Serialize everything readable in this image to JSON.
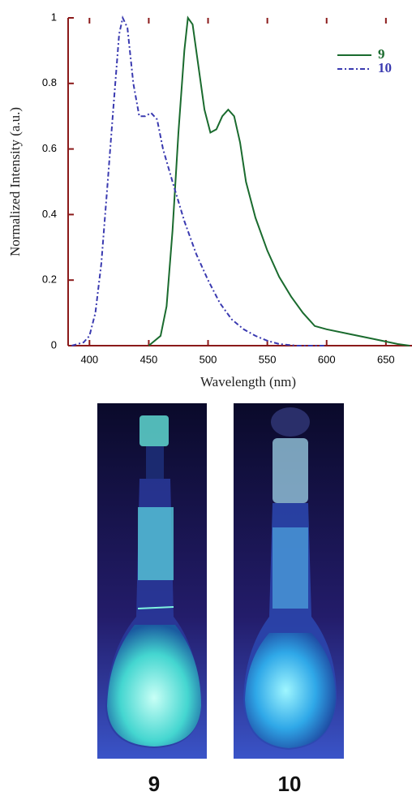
{
  "chart_data": {
    "type": "line",
    "xlabel": "Wavelength (nm)",
    "ylabel": "Normalized Intensity (a.u.)",
    "xlim": [
      382,
      672
    ],
    "xticks": [
      400,
      450,
      500,
      550,
      600,
      650
    ],
    "ylim": [
      0,
      1
    ],
    "yticks": [
      0,
      0.2,
      0.4,
      0.6,
      0.8,
      1
    ],
    "legend": "upper right",
    "series": [
      {
        "name": "9",
        "color": "#1a6b2e",
        "dash": "solid",
        "x": [
          450,
          460,
          465,
          470,
          475,
          480,
          483,
          487,
          492,
          497,
          502,
          507,
          512,
          517,
          522,
          527,
          532,
          540,
          550,
          560,
          570,
          580,
          590,
          600,
          620,
          640,
          660,
          670
        ],
        "values": [
          0,
          0.03,
          0.12,
          0.35,
          0.65,
          0.9,
          1.0,
          0.98,
          0.85,
          0.72,
          0.65,
          0.66,
          0.7,
          0.72,
          0.7,
          0.62,
          0.5,
          0.39,
          0.29,
          0.21,
          0.15,
          0.1,
          0.06,
          0.05,
          0.035,
          0.02,
          0.005,
          0
        ]
      },
      {
        "name": "10",
        "color": "#3a3ab0",
        "dash": "dashdot",
        "x": [
          385,
          395,
          400,
          405,
          410,
          415,
          420,
          425,
          428,
          432,
          437,
          442,
          447,
          452,
          457,
          462,
          470,
          480,
          490,
          500,
          510,
          520,
          530,
          540,
          550,
          560,
          575,
          600
        ],
        "values": [
          0,
          0.01,
          0.03,
          0.1,
          0.25,
          0.48,
          0.72,
          0.95,
          1.0,
          0.97,
          0.8,
          0.7,
          0.7,
          0.71,
          0.69,
          0.6,
          0.5,
          0.38,
          0.28,
          0.2,
          0.13,
          0.08,
          0.05,
          0.03,
          0.015,
          0.005,
          0,
          0
        ]
      }
    ]
  },
  "photos": [
    {
      "label": "9"
    },
    {
      "label": "10"
    }
  ]
}
